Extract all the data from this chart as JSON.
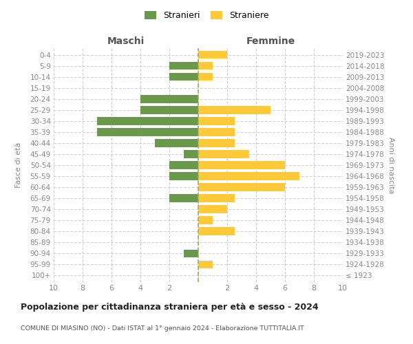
{
  "age_groups": [
    "100+",
    "95-99",
    "90-94",
    "85-89",
    "80-84",
    "75-79",
    "70-74",
    "65-69",
    "60-64",
    "55-59",
    "50-54",
    "45-49",
    "40-44",
    "35-39",
    "30-34",
    "25-29",
    "20-24",
    "15-19",
    "10-14",
    "5-9",
    "0-4"
  ],
  "birth_years": [
    "≤ 1923",
    "1924-1928",
    "1929-1933",
    "1934-1938",
    "1939-1943",
    "1944-1948",
    "1949-1953",
    "1954-1958",
    "1959-1963",
    "1964-1968",
    "1969-1973",
    "1974-1978",
    "1979-1983",
    "1984-1988",
    "1989-1993",
    "1994-1998",
    "1999-2003",
    "2004-2008",
    "2009-2013",
    "2014-2018",
    "2019-2023"
  ],
  "males": [
    0,
    0,
    1,
    0,
    0,
    0,
    0,
    2,
    0,
    2,
    2,
    1,
    3,
    7,
    7,
    4,
    4,
    0,
    2,
    2,
    0
  ],
  "females": [
    0,
    1,
    0,
    0,
    2.5,
    1,
    2,
    2.5,
    6,
    7,
    6,
    3.5,
    2.5,
    2.5,
    2.5,
    5,
    0,
    0,
    1,
    1,
    2
  ],
  "male_color": "#6a994e",
  "female_color": "#ffca3a",
  "title": "Popolazione per cittadinanza straniera per età e sesso - 2024",
  "subtitle": "COMUNE DI MIASINO (NO) - Dati ISTAT al 1° gennaio 2024 - Elaborazione TUTTITALIA.IT",
  "left_label": "Maschi",
  "right_label": "Femmine",
  "ylabel_left": "Fasce di età",
  "ylabel_right": "Anni di nascita",
  "legend_male": "Stranieri",
  "legend_female": "Straniere",
  "xlim": 10,
  "background_color": "#ffffff",
  "grid_color": "#cccccc"
}
